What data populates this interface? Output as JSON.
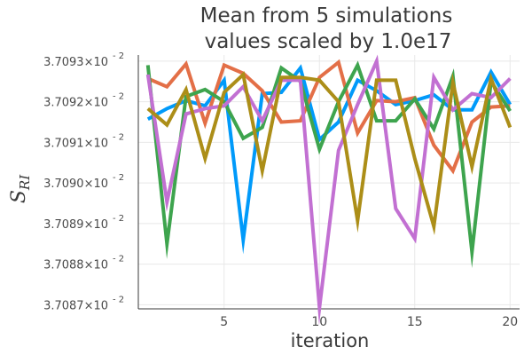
{
  "chart_data": {
    "type": "line",
    "title_line1": "Mean from 5 simulations",
    "title_line2": "values scaled by 1.0e17",
    "xlabel": "iteration",
    "ylabel_main": "S",
    "ylabel_sub": "RI",
    "xlim": [
      0.5,
      20.5
    ],
    "ylim": [
      3.70869,
      3.709315
    ],
    "x_ticks": [
      5,
      10,
      15,
      20
    ],
    "y_ticks": [
      {
        "value": 3.7087,
        "label": "3.7087×10",
        "exp": "- 2"
      },
      {
        "value": 3.7088,
        "label": "3.7088×10",
        "exp": "- 2"
      },
      {
        "value": 3.7089,
        "label": "3.7089×10",
        "exp": "- 2"
      },
      {
        "value": 3.709,
        "label": "3.7090×10",
        "exp": "- 2"
      },
      {
        "value": 3.7091,
        "label": "3.7091×10",
        "exp": "- 2"
      },
      {
        "value": 3.7092,
        "label": "3.7092×10",
        "exp": "- 2"
      },
      {
        "value": 3.7093,
        "label": "3.7093×10",
        "exp": "- 2"
      }
    ],
    "grid": true,
    "x": [
      1,
      2,
      3,
      4,
      5,
      6,
      7,
      8,
      9,
      10,
      11,
      12,
      13,
      14,
      15,
      16,
      17,
      18,
      19,
      20
    ],
    "series": [
      {
        "color": "#009AFA",
        "values": [
          3.709157,
          3.709183,
          3.709203,
          3.70919,
          3.709253,
          3.70886,
          3.70922,
          3.709223,
          3.709283,
          3.709107,
          3.70915,
          3.709253,
          3.709227,
          3.709193,
          3.709203,
          3.709217,
          3.70918,
          3.70918,
          3.709273,
          3.709193
        ]
      },
      {
        "color": "#E36F47",
        "values": [
          3.709257,
          3.709237,
          3.709293,
          3.709147,
          3.70929,
          3.70927,
          3.709227,
          3.70915,
          3.709153,
          3.70926,
          3.709297,
          3.709123,
          3.709203,
          3.7092,
          3.70921,
          3.709093,
          3.70903,
          3.70915,
          3.709187,
          3.70919
        ]
      },
      {
        "color": "#3EA44E",
        "values": [
          3.70929,
          3.70885,
          3.709213,
          3.70923,
          3.7092,
          3.70911,
          3.709137,
          3.709283,
          3.70925,
          3.709083,
          3.7092,
          3.70929,
          3.709153,
          3.709153,
          3.709207,
          3.709133,
          3.709263,
          3.70883,
          3.70925,
          3.709177
        ]
      },
      {
        "color": "#C270D2",
        "values": [
          3.709267,
          3.708953,
          3.70917,
          3.709183,
          3.70919,
          3.709237,
          3.709153,
          3.709253,
          3.709253,
          3.708693,
          3.70908,
          3.709193,
          3.7093,
          3.708937,
          3.708863,
          3.70926,
          3.70918,
          3.70922,
          3.70921,
          3.709257
        ]
      },
      {
        "color": "#AC8E18",
        "values": [
          3.709183,
          3.709143,
          3.70923,
          3.70906,
          3.709223,
          3.709267,
          3.70903,
          3.70926,
          3.70926,
          3.709253,
          3.7092,
          3.708907,
          3.709253,
          3.709253,
          3.70906,
          3.708893,
          3.709247,
          3.70904,
          3.709257,
          3.709137
        ]
      }
    ]
  }
}
